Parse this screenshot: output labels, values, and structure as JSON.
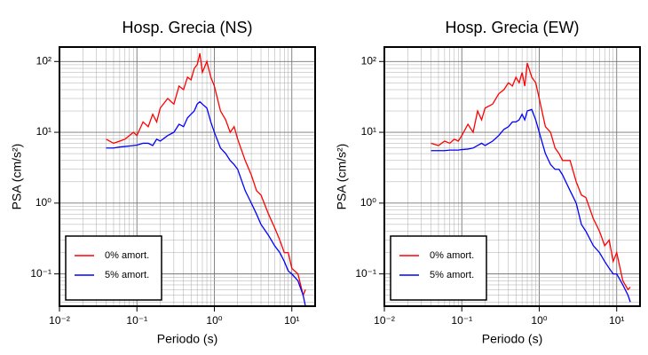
{
  "chart_data": [
    {
      "type": "line",
      "title": "Hosp. Grecia (NS)",
      "xlabel": "Periodo (s)",
      "ylabel": "PSA (cm/s²)",
      "xscale": "log",
      "yscale": "log",
      "grid": true,
      "legend": "lower left",
      "xlim": [
        0.01,
        20
      ],
      "ylim": [
        0.035,
        160
      ],
      "xticks": [
        {
          "value": 0.01,
          "label": "10⁻²"
        },
        {
          "value": 0.1,
          "label": "10⁻¹"
        },
        {
          "value": 1,
          "label": "10⁰"
        },
        {
          "value": 10,
          "label": "10¹"
        }
      ],
      "yticks": [
        {
          "value": 0.1,
          "label": "10⁻¹"
        },
        {
          "value": 1,
          "label": "10⁰"
        },
        {
          "value": 10,
          "label": "10¹"
        },
        {
          "value": 100,
          "label": "10²"
        }
      ],
      "x": [
        0.04,
        0.05,
        0.06,
        0.07,
        0.08,
        0.09,
        0.1,
        0.12,
        0.14,
        0.16,
        0.18,
        0.2,
        0.25,
        0.3,
        0.35,
        0.4,
        0.45,
        0.5,
        0.55,
        0.6,
        0.65,
        0.7,
        0.8,
        0.9,
        1.0,
        1.2,
        1.4,
        1.6,
        1.8,
        2,
        2.5,
        3,
        3.5,
        4,
        5,
        6,
        7,
        8,
        9,
        10,
        12,
        14,
        15
      ],
      "series": [
        {
          "name": "0% amort.",
          "color": "#ff0000",
          "values": [
            8,
            7,
            7.5,
            8,
            9,
            10,
            9,
            14,
            12,
            18,
            14,
            22,
            30,
            25,
            45,
            40,
            60,
            55,
            80,
            90,
            130,
            70,
            100,
            60,
            45,
            20,
            15,
            10,
            12,
            8,
            4,
            2.5,
            1.5,
            1.3,
            0.7,
            0.45,
            0.3,
            0.2,
            0.2,
            0.12,
            0.1,
            0.05,
            0.06
          ]
        },
        {
          "name": "5% amort.",
          "color": "#0000ff",
          "values": [
            6,
            6,
            6.2,
            6.3,
            6.4,
            6.5,
            6.6,
            7,
            7,
            6.5,
            8,
            7.5,
            9,
            10,
            13,
            12,
            16,
            18,
            20,
            25,
            27,
            25,
            22,
            14,
            10,
            6,
            5,
            4,
            3.5,
            3,
            1.5,
            1,
            0.7,
            0.5,
            0.35,
            0.25,
            0.2,
            0.15,
            0.11,
            0.1,
            0.08,
            0.05,
            0.035
          ]
        }
      ]
    },
    {
      "type": "line",
      "title": "Hosp. Grecia (EW)",
      "xlabel": "Periodo (s)",
      "ylabel": "PSA (cm/s²)",
      "xscale": "log",
      "yscale": "log",
      "grid": true,
      "legend": "lower left",
      "xlim": [
        0.01,
        20
      ],
      "ylim": [
        0.035,
        160
      ],
      "xticks": [
        {
          "value": 0.01,
          "label": "10⁻²"
        },
        {
          "value": 0.1,
          "label": "10⁻¹"
        },
        {
          "value": 1,
          "label": "10⁰"
        },
        {
          "value": 10,
          "label": "10¹"
        }
      ],
      "yticks": [
        {
          "value": 0.1,
          "label": "10⁻¹"
        },
        {
          "value": 1,
          "label": "10⁰"
        },
        {
          "value": 10,
          "label": "10¹"
        },
        {
          "value": 100,
          "label": "10²"
        }
      ],
      "x": [
        0.04,
        0.05,
        0.06,
        0.07,
        0.08,
        0.09,
        0.1,
        0.12,
        0.14,
        0.16,
        0.18,
        0.2,
        0.25,
        0.3,
        0.35,
        0.4,
        0.45,
        0.5,
        0.55,
        0.6,
        0.65,
        0.7,
        0.8,
        0.9,
        1.0,
        1.2,
        1.4,
        1.6,
        1.8,
        2,
        2.5,
        3,
        3.5,
        4,
        5,
        6,
        7,
        8,
        9,
        10,
        12,
        14,
        15
      ],
      "series": [
        {
          "name": "0% amort.",
          "color": "#ff0000",
          "values": [
            7,
            6.5,
            7.5,
            7,
            8,
            7.5,
            9,
            13,
            10,
            20,
            15,
            22,
            25,
            35,
            40,
            50,
            45,
            60,
            50,
            70,
            45,
            95,
            60,
            50,
            30,
            12,
            10,
            6,
            5,
            4,
            4,
            2,
            1.3,
            1.2,
            0.6,
            0.4,
            0.25,
            0.3,
            0.15,
            0.2,
            0.08,
            0.06,
            0.065
          ]
        },
        {
          "name": "5% amort.",
          "color": "#0000ff",
          "values": [
            5.5,
            5.5,
            5.5,
            5.6,
            5.6,
            5.6,
            5.7,
            5.8,
            6,
            6.5,
            7,
            6.5,
            7.5,
            9,
            11,
            12,
            14,
            14,
            15,
            18,
            15,
            20,
            21,
            15,
            10,
            5,
            3.5,
            3,
            3,
            2.5,
            1.5,
            1,
            0.5,
            0.4,
            0.25,
            0.2,
            0.15,
            0.12,
            0.1,
            0.1,
            0.07,
            0.05,
            0.04
          ]
        }
      ]
    }
  ]
}
